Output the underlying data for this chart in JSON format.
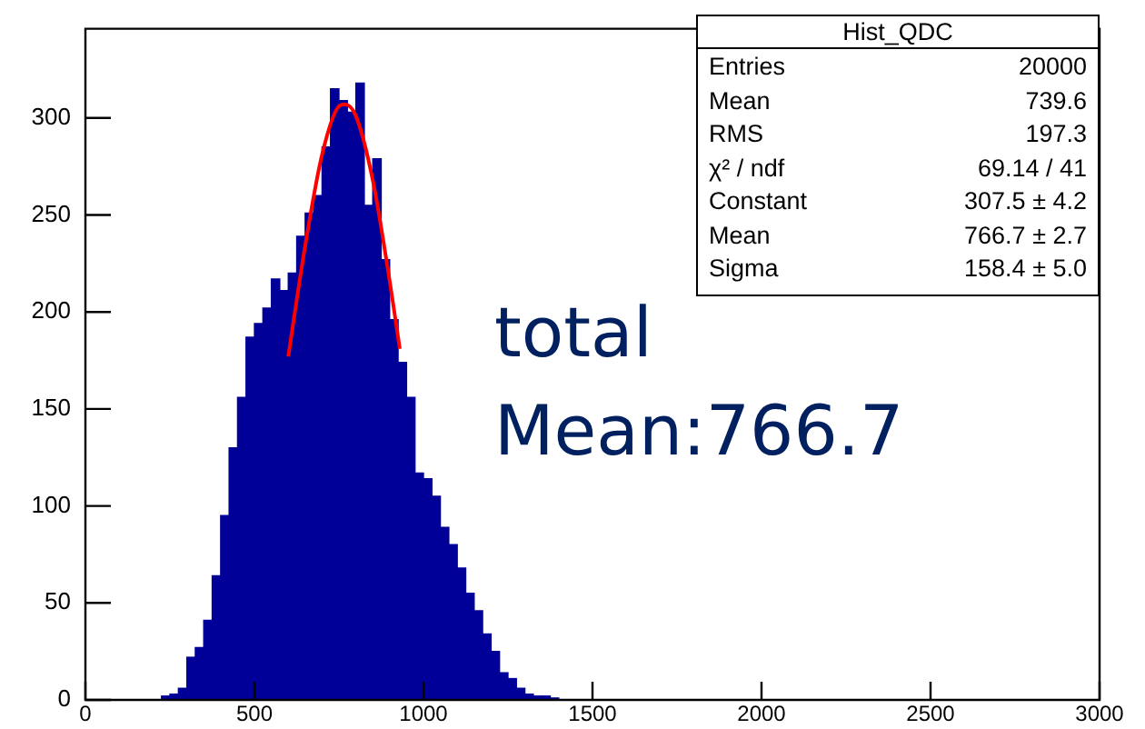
{
  "chart_data": {
    "type": "histogram",
    "title": "Hist_QDC",
    "xlim": [
      0,
      3000
    ],
    "xticks": [
      0,
      500,
      1000,
      1500,
      2000,
      2500,
      3000
    ],
    "ylim": [
      0,
      346
    ],
    "yticks": [
      0,
      50,
      100,
      150,
      200,
      250,
      300
    ],
    "grid": false,
    "legend": false,
    "color": "#000099",
    "bins": [
      200,
      225,
      250,
      275,
      300,
      325,
      350,
      375,
      400,
      425,
      450,
      475,
      500,
      525,
      550,
      575,
      600,
      625,
      650,
      675,
      700,
      725,
      750,
      775,
      800,
      825,
      850,
      875,
      900,
      925,
      950,
      975,
      1000,
      1025,
      1050,
      1075,
      1100,
      1125,
      1150,
      1175,
      1200,
      1225,
      1250,
      1275,
      1300,
      1325,
      1350,
      1375,
      1400,
      1425
    ],
    "values": [
      0,
      2,
      3,
      6,
      22,
      27,
      41,
      64,
      95,
      130,
      156,
      187,
      194,
      202,
      217,
      211,
      220,
      239,
      251,
      260,
      285,
      315,
      309,
      303,
      318,
      255,
      279,
      227,
      196,
      174,
      156,
      117,
      114,
      105,
      89,
      80,
      68,
      55,
      46,
      34,
      25,
      14,
      11,
      6,
      3,
      2,
      2,
      1,
      0
    ],
    "series": [
      {
        "type": "line",
        "color": "#ff0000",
        "x": [
          600,
          650,
          700,
          750,
          767,
          800,
          850,
          900,
          930
        ],
        "values": [
          177,
          234,
          281,
          306,
          307,
          301,
          268,
          216,
          181
        ]
      }
    ],
    "annotations": [
      "Entries  20000",
      "Mean  739.6",
      "RMS  197.3",
      "χ² / ndf  69.14 / 41",
      "Constant  307.5 ± 4.2",
      "Mean  766.7 ± 2.7",
      "Sigma  158.4 ± 5.0",
      "total",
      "Mean:766.7"
    ]
  }
}
